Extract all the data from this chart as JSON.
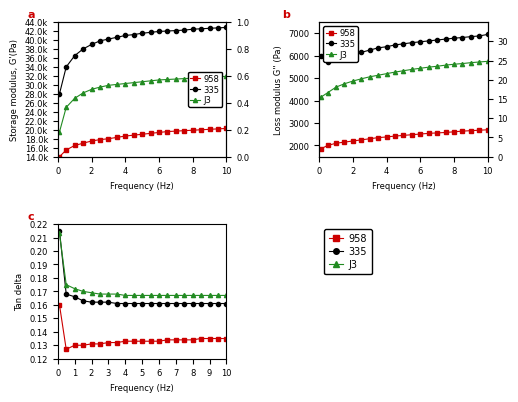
{
  "freq": [
    0.1,
    0.5,
    1.0,
    1.5,
    2.0,
    2.5,
    3.0,
    3.5,
    4.0,
    4.5,
    5.0,
    5.5,
    6.0,
    6.5,
    7.0,
    7.5,
    8.0,
    8.5,
    9.0,
    9.5,
    10.0
  ],
  "G_prime_958": [
    14000,
    15500,
    16500,
    17000,
    17500,
    17800,
    18000,
    18300,
    18600,
    18800,
    19000,
    19200,
    19400,
    19600,
    19700,
    19800,
    19900,
    20000,
    20100,
    20200,
    20300
  ],
  "G_prime_335": [
    28000,
    34000,
    36500,
    38000,
    39000,
    39800,
    40200,
    40600,
    41000,
    41200,
    41500,
    41700,
    41900,
    42000,
    42100,
    42200,
    42400,
    42500,
    42600,
    42700,
    42800
  ],
  "G_prime_J3": [
    19500,
    25000,
    27000,
    28200,
    29000,
    29500,
    29900,
    30100,
    30300,
    30500,
    30700,
    30900,
    31100,
    31200,
    31300,
    31400,
    31500,
    31600,
    31700,
    31800,
    31900
  ],
  "G_dprime_958": [
    1850,
    2000,
    2100,
    2150,
    2200,
    2250,
    2300,
    2350,
    2380,
    2420,
    2450,
    2480,
    2510,
    2540,
    2560,
    2580,
    2610,
    2640,
    2660,
    2680,
    2700
  ],
  "G_dprime_335": [
    6000,
    5700,
    5850,
    5950,
    6050,
    6150,
    6250,
    6350,
    6400,
    6480,
    6530,
    6580,
    6620,
    6660,
    6700,
    6740,
    6780,
    6810,
    6850,
    6880,
    6950
  ],
  "G_dprime_J3": [
    4150,
    4350,
    4600,
    4750,
    4870,
    4970,
    5060,
    5130,
    5200,
    5270,
    5330,
    5390,
    5440,
    5490,
    5530,
    5580,
    5620,
    5650,
    5690,
    5720,
    5750
  ],
  "tan_958": [
    0.16,
    0.127,
    0.13,
    0.13,
    0.131,
    0.131,
    0.132,
    0.132,
    0.133,
    0.133,
    0.133,
    0.133,
    0.133,
    0.134,
    0.134,
    0.134,
    0.134,
    0.135,
    0.135,
    0.135,
    0.135
  ],
  "tan_335": [
    0.215,
    0.168,
    0.166,
    0.163,
    0.162,
    0.162,
    0.162,
    0.161,
    0.161,
    0.161,
    0.161,
    0.161,
    0.161,
    0.161,
    0.161,
    0.161,
    0.161,
    0.161,
    0.161,
    0.161,
    0.161
  ],
  "tan_J3": [
    0.213,
    0.175,
    0.172,
    0.17,
    0.169,
    0.168,
    0.168,
    0.168,
    0.167,
    0.167,
    0.167,
    0.167,
    0.167,
    0.167,
    0.167,
    0.167,
    0.167,
    0.167,
    0.167,
    0.167,
    0.167
  ],
  "color_958": "#cc0000",
  "color_335": "#000000",
  "color_J3": "#228B22",
  "marker_958": "s",
  "marker_335": "o",
  "marker_J3": "^",
  "label_958": "958",
  "label_335": "335",
  "label_J3": "J3",
  "title_a": "a",
  "title_b": "b",
  "title_c": "c",
  "xlabel": "Frequency (Hz)",
  "ylabel_a": "Storage modulus, G'(Pa)",
  "ylabel_b": "Loss modulus G'' (Pa)",
  "ylabel_c": "Tan delta",
  "xlim": [
    0,
    10
  ],
  "ylim_a": [
    14000,
    44000
  ],
  "ylim_b": [
    1500,
    7500
  ],
  "ylim_c": [
    0.12,
    0.22
  ],
  "yticks_a": [
    14000,
    16000,
    18000,
    20000,
    22000,
    24000,
    26000,
    28000,
    30000,
    32000,
    34000,
    36000,
    38000,
    40000,
    42000,
    44000
  ],
  "ytick_labels_a": [
    "14.0k",
    "16.0k",
    "18.0k",
    "20.0k",
    "22.0k",
    "24.0k",
    "26.0k",
    "28.0k",
    "30.0k",
    "32.0k",
    "34.0k",
    "36.0k",
    "38.0k",
    "40.0k",
    "42.0k",
    "44.0k"
  ],
  "yticks_b": [
    2000,
    3000,
    4000,
    5000,
    6000,
    7000
  ],
  "ytick_labels_b": [
    "2000",
    "3000",
    "4000",
    "5000",
    "6000",
    "7000"
  ],
  "yticks_c": [
    0.12,
    0.13,
    0.14,
    0.15,
    0.16,
    0.17,
    0.18,
    0.19,
    0.2,
    0.21,
    0.22
  ],
  "right_yticks_a": [
    0.0,
    0.2,
    0.4,
    0.6,
    0.8,
    1.0
  ],
  "right_ytick_labels_a": [
    "0.0",
    "0.2",
    "0.4",
    "0.6",
    "0.8",
    "1.0"
  ],
  "right_yticks_b": [
    0,
    5,
    10,
    15,
    20,
    25,
    30
  ],
  "right_ytick_labels_b": [
    "0",
    "5",
    "10",
    "15",
    "20",
    "25",
    "30"
  ],
  "xticks_ab": [
    0,
    2,
    4,
    6,
    8,
    10
  ],
  "xticks_c": [
    0,
    1,
    2,
    3,
    4,
    5,
    6,
    7,
    8,
    9,
    10
  ],
  "fontsize": 6,
  "markersize": 3,
  "linewidth": 0.8
}
